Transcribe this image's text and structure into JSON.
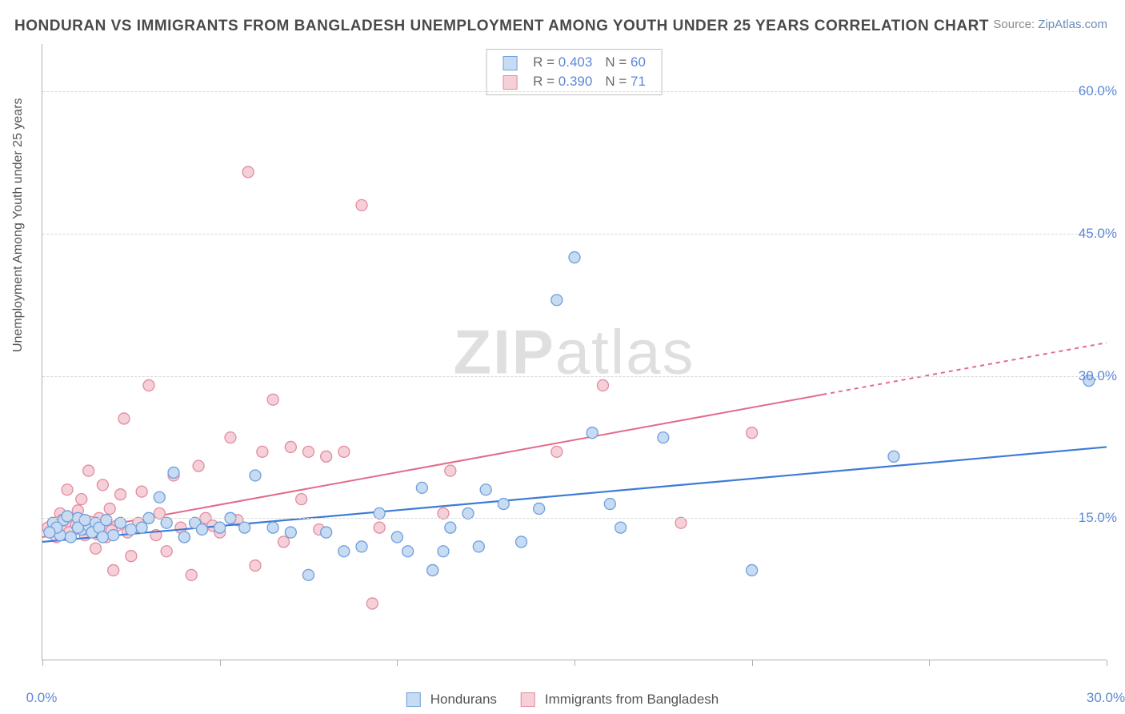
{
  "title": "HONDURAN VS IMMIGRANTS FROM BANGLADESH UNEMPLOYMENT AMONG YOUTH UNDER 25 YEARS CORRELATION CHART",
  "source_label": "Source: ",
  "source_link": "ZipAtlas.com",
  "y_axis_label": "Unemployment Among Youth under 25 years",
  "watermark_bold": "ZIP",
  "watermark_light": "atlas",
  "chart": {
    "type": "scatter",
    "xlim": [
      0,
      30
    ],
    "ylim": [
      0,
      65
    ],
    "x_ticks": [
      0,
      5,
      10,
      15,
      20,
      25,
      30
    ],
    "x_tick_labels": {
      "0": "0.0%",
      "30": "30.0%"
    },
    "y_gridlines": [
      15,
      30,
      45,
      60
    ],
    "y_tick_labels": {
      "15": "15.0%",
      "30": "30.0%",
      "45": "45.0%",
      "60": "60.0%"
    },
    "background_color": "#ffffff",
    "grid_color": "#d8d8d8",
    "axis_color": "#b0b0b0",
    "tick_label_color": "#5b88d6",
    "marker_radius": 7,
    "marker_stroke_width": 1.3,
    "series": [
      {
        "key": "hondurans",
        "label": "Hondurans",
        "fill": "#c7dbf2",
        "stroke": "#6f9fde",
        "line_color": "#3e7bd6",
        "R_label": "R =",
        "R": "0.403",
        "N_label": "N =",
        "N": "60",
        "trend": {
          "x1": 0,
          "y1": 12.5,
          "x2": 30,
          "y2": 22.5,
          "dashed_from_x": null
        },
        "points": [
          [
            0.3,
            14.5
          ],
          [
            0.5,
            13.2
          ],
          [
            0.6,
            14.8
          ],
          [
            0.8,
            13.0
          ],
          [
            1.0,
            15.0
          ],
          [
            1.1,
            13.8
          ],
          [
            1.3,
            14.2
          ],
          [
            1.5,
            14.5
          ],
          [
            0.4,
            14.0
          ],
          [
            0.7,
            15.2
          ],
          [
            1.0,
            14.0
          ],
          [
            1.2,
            14.8
          ],
          [
            1.4,
            13.5
          ],
          [
            1.6,
            14.0
          ],
          [
            1.8,
            14.8
          ],
          [
            2.0,
            13.2
          ],
          [
            2.2,
            14.5
          ],
          [
            2.5,
            13.8
          ],
          [
            2.8,
            14.0
          ],
          [
            3.0,
            15.0
          ],
          [
            3.3,
            17.2
          ],
          [
            3.5,
            14.5
          ],
          [
            3.7,
            19.8
          ],
          [
            4.0,
            13.0
          ],
          [
            4.3,
            14.5
          ],
          [
            4.5,
            13.8
          ],
          [
            5.0,
            14.0
          ],
          [
            5.3,
            15.0
          ],
          [
            5.7,
            14.0
          ],
          [
            6.0,
            19.5
          ],
          [
            6.5,
            14.0
          ],
          [
            7.0,
            13.5
          ],
          [
            7.5,
            9.0
          ],
          [
            8.0,
            13.5
          ],
          [
            8.5,
            11.5
          ],
          [
            9.0,
            12.0
          ],
          [
            9.5,
            15.5
          ],
          [
            10.0,
            13.0
          ],
          [
            10.3,
            11.5
          ],
          [
            10.7,
            18.2
          ],
          [
            11.0,
            9.5
          ],
          [
            11.3,
            11.5
          ],
          [
            11.5,
            14.0
          ],
          [
            12.0,
            15.5
          ],
          [
            12.3,
            12.0
          ],
          [
            12.5,
            18.0
          ],
          [
            13.0,
            16.5
          ],
          [
            13.5,
            12.5
          ],
          [
            14.0,
            16.0
          ],
          [
            14.5,
            38.0
          ],
          [
            15.0,
            42.5
          ],
          [
            15.5,
            24.0
          ],
          [
            16.0,
            16.5
          ],
          [
            16.3,
            14.0
          ],
          [
            17.5,
            23.5
          ],
          [
            20.0,
            9.5
          ],
          [
            24.0,
            21.5
          ],
          [
            29.5,
            29.5
          ],
          [
            0.2,
            13.5
          ],
          [
            1.7,
            13.0
          ]
        ]
      },
      {
        "key": "bangladesh",
        "label": "Immigrants from Bangladesh",
        "fill": "#f5d0d8",
        "stroke": "#e38ba0",
        "line_color": "#e36b8a",
        "R_label": "R =",
        "R": "0.390",
        "N_label": "N =",
        "N": "71",
        "trend": {
          "x1": 0,
          "y1": 13.0,
          "x2": 30,
          "y2": 33.5,
          "dashed_from_x": 22
        },
        "points": [
          [
            0.2,
            13.8
          ],
          [
            0.3,
            14.5
          ],
          [
            0.4,
            13.0
          ],
          [
            0.5,
            15.5
          ],
          [
            0.6,
            14.0
          ],
          [
            0.7,
            18.0
          ],
          [
            0.8,
            14.5
          ],
          [
            0.9,
            13.8
          ],
          [
            1.0,
            15.8
          ],
          [
            1.1,
            17.0
          ],
          [
            1.2,
            13.2
          ],
          [
            1.3,
            20.0
          ],
          [
            1.4,
            14.0
          ],
          [
            1.5,
            11.8
          ],
          [
            1.6,
            15.0
          ],
          [
            1.7,
            18.5
          ],
          [
            1.8,
            13.0
          ],
          [
            1.9,
            16.0
          ],
          [
            2.0,
            9.5
          ],
          [
            2.1,
            14.2
          ],
          [
            2.2,
            17.5
          ],
          [
            2.3,
            25.5
          ],
          [
            2.4,
            13.5
          ],
          [
            2.5,
            11.0
          ],
          [
            2.7,
            14.5
          ],
          [
            2.8,
            17.8
          ],
          [
            3.0,
            29.0
          ],
          [
            3.2,
            13.2
          ],
          [
            3.3,
            15.5
          ],
          [
            3.5,
            11.5
          ],
          [
            3.7,
            19.5
          ],
          [
            3.9,
            14.0
          ],
          [
            4.0,
            13.0
          ],
          [
            4.2,
            9.0
          ],
          [
            4.4,
            20.5
          ],
          [
            4.6,
            15.0
          ],
          [
            4.8,
            14.2
          ],
          [
            5.0,
            13.5
          ],
          [
            5.3,
            23.5
          ],
          [
            5.5,
            14.8
          ],
          [
            5.8,
            51.5
          ],
          [
            6.0,
            10.0
          ],
          [
            6.2,
            22.0
          ],
          [
            6.5,
            27.5
          ],
          [
            6.8,
            12.5
          ],
          [
            7.0,
            22.5
          ],
          [
            7.3,
            17.0
          ],
          [
            7.5,
            22.0
          ],
          [
            7.8,
            13.8
          ],
          [
            8.0,
            21.5
          ],
          [
            8.5,
            22.0
          ],
          [
            9.0,
            48.0
          ],
          [
            9.3,
            6.0
          ],
          [
            9.5,
            14.0
          ],
          [
            11.0,
            9.5
          ],
          [
            11.3,
            15.5
          ],
          [
            11.5,
            20.0
          ],
          [
            14.5,
            22.0
          ],
          [
            15.8,
            29.0
          ],
          [
            18.0,
            14.5
          ],
          [
            20.0,
            24.0
          ],
          [
            0.15,
            14.0
          ],
          [
            0.35,
            13.2
          ],
          [
            0.55,
            14.8
          ],
          [
            0.75,
            13.5
          ],
          [
            0.95,
            14.3
          ],
          [
            1.15,
            13.8
          ],
          [
            1.35,
            14.6
          ],
          [
            1.55,
            13.3
          ],
          [
            1.75,
            14.0
          ],
          [
            1.95,
            13.7
          ]
        ]
      }
    ]
  },
  "legend_bottom": [
    {
      "label_key": "chart.series.0.label",
      "fill": "#c7dbf2",
      "stroke": "#6f9fde"
    },
    {
      "label_key": "chart.series.1.label",
      "fill": "#f5d0d8",
      "stroke": "#e38ba0"
    }
  ]
}
